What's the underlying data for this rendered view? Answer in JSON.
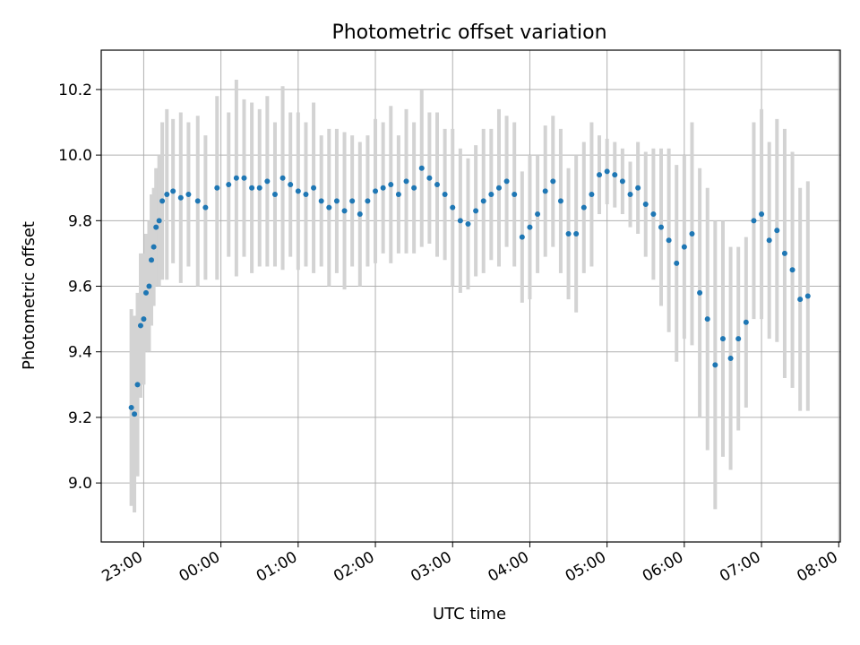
{
  "chart_data": {
    "type": "scatter",
    "title": "Photometric offset variation",
    "xlabel": "UTC time",
    "ylabel": "Photometric offset",
    "x_ticks": [
      "23:00",
      "00:00",
      "01:00",
      "02:00",
      "03:00",
      "04:00",
      "05:00",
      "06:00",
      "07:00",
      "08:00"
    ],
    "y_ticks": [
      "9.0",
      "9.2",
      "9.4",
      "9.6",
      "9.8",
      "10.0",
      "10.2"
    ],
    "xlim_hours": [
      -1.55,
      8.02
    ],
    "ylim": [
      8.82,
      10.32
    ],
    "grid": true,
    "colors": {
      "points": "#1f77b4",
      "errorbars": "#d3d3d3",
      "grid": "#b0b0b0"
    },
    "series": [
      {
        "x_hours": [
          -1.16,
          -1.12,
          -1.08,
          -1.04,
          -1.0,
          -0.97,
          -0.93,
          -0.9,
          -0.87,
          -0.84,
          -0.8,
          -0.76,
          -0.7,
          -0.62,
          -0.52,
          -0.42,
          -0.3,
          -0.2,
          -0.05,
          0.1,
          0.2,
          0.3,
          0.4,
          0.5,
          0.6,
          0.7,
          0.8,
          0.9,
          1.0,
          1.1,
          1.2,
          1.3,
          1.4,
          1.5,
          1.6,
          1.7,
          1.8,
          1.9,
          2.0,
          2.1,
          2.2,
          2.3,
          2.4,
          2.5,
          2.6,
          2.7,
          2.8,
          2.9,
          3.0,
          3.1,
          3.2,
          3.3,
          3.4,
          3.5,
          3.6,
          3.7,
          3.8,
          3.9,
          4.0,
          4.1,
          4.2,
          4.3,
          4.4,
          4.5,
          4.6,
          4.7,
          4.8,
          4.9,
          5.0,
          5.1,
          5.2,
          5.3,
          5.4,
          5.5,
          5.6,
          5.7,
          5.8,
          5.9,
          6.0,
          6.1,
          6.2,
          6.3,
          6.4,
          6.5,
          6.6,
          6.7,
          6.8,
          6.9,
          7.0,
          7.1,
          7.2,
          7.3,
          7.4,
          7.5,
          7.6
        ],
        "y": [
          9.23,
          9.21,
          9.3,
          9.48,
          9.5,
          9.58,
          9.6,
          9.68,
          9.72,
          9.78,
          9.8,
          9.86,
          9.88,
          9.89,
          9.87,
          9.88,
          9.86,
          9.84,
          9.9,
          9.91,
          9.93,
          9.93,
          9.9,
          9.9,
          9.92,
          9.88,
          9.93,
          9.91,
          9.89,
          9.88,
          9.9,
          9.86,
          9.84,
          9.86,
          9.83,
          9.86,
          9.82,
          9.86,
          9.89,
          9.9,
          9.91,
          9.88,
          9.92,
          9.9,
          9.96,
          9.93,
          9.91,
          9.88,
          9.84,
          9.8,
          9.79,
          9.83,
          9.86,
          9.88,
          9.9,
          9.92,
          9.88,
          9.75,
          9.78,
          9.82,
          9.89,
          9.92,
          9.86,
          9.76,
          9.76,
          9.84,
          9.88,
          9.94,
          9.95,
          9.94,
          9.92,
          9.88,
          9.9,
          9.85,
          9.82,
          9.78,
          9.74,
          9.67,
          9.72,
          9.76,
          9.58,
          9.5,
          9.36,
          9.44,
          9.38,
          9.44,
          9.49,
          9.8,
          9.82,
          9.74,
          9.77,
          9.7,
          9.65,
          9.56,
          9.57
        ],
        "err": [
          0.3,
          0.3,
          0.28,
          0.22,
          0.2,
          0.18,
          0.2,
          0.2,
          0.18,
          0.18,
          0.2,
          0.24,
          0.26,
          0.22,
          0.26,
          0.22,
          0.26,
          0.22,
          0.28,
          0.22,
          0.3,
          0.24,
          0.26,
          0.24,
          0.26,
          0.22,
          0.28,
          0.22,
          0.24,
          0.22,
          0.26,
          0.2,
          0.24,
          0.22,
          0.24,
          0.2,
          0.22,
          0.2,
          0.22,
          0.2,
          0.24,
          0.18,
          0.22,
          0.2,
          0.24,
          0.2,
          0.22,
          0.2,
          0.24,
          0.22,
          0.2,
          0.2,
          0.22,
          0.2,
          0.24,
          0.2,
          0.22,
          0.2,
          0.22,
          0.18,
          0.2,
          0.2,
          0.22,
          0.2,
          0.24,
          0.2,
          0.22,
          0.12,
          0.1,
          0.1,
          0.1,
          0.1,
          0.14,
          0.16,
          0.2,
          0.24,
          0.28,
          0.3,
          0.28,
          0.34,
          0.38,
          0.4,
          0.44,
          0.36,
          0.34,
          0.28,
          0.26,
          0.3,
          0.32,
          0.3,
          0.34,
          0.38,
          0.36,
          0.34,
          0.35
        ]
      }
    ]
  }
}
